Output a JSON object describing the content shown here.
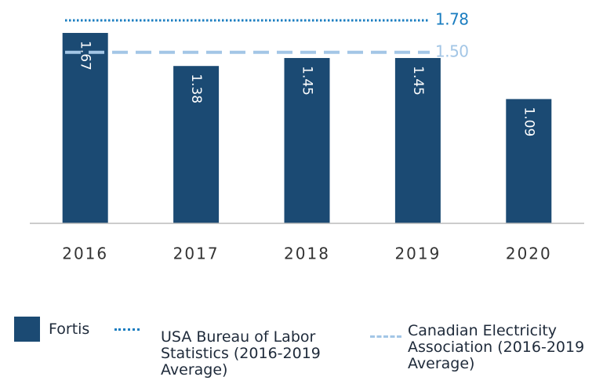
{
  "chart_data": {
    "type": "bar",
    "categories": [
      "2016",
      "2017",
      "2018",
      "2019",
      "2020"
    ],
    "series": [
      {
        "name": "Fortis",
        "color": "#1b4a73",
        "values": [
          1.67,
          1.38,
          1.45,
          1.45,
          1.09
        ]
      }
    ],
    "reference_lines": [
      {
        "name": "USA Bureau of Labor Statistics (2016-2019 Average)",
        "value": 1.78,
        "color": "#1a7dc0",
        "style": "dotted"
      },
      {
        "name": "Canadian Electricity Association (2016-2019 Average)",
        "value": 1.5,
        "value_label": "1.50",
        "color": "#a3c6e6",
        "style": "dashed"
      }
    ],
    "ylim": [
      0,
      1.9
    ]
  }
}
